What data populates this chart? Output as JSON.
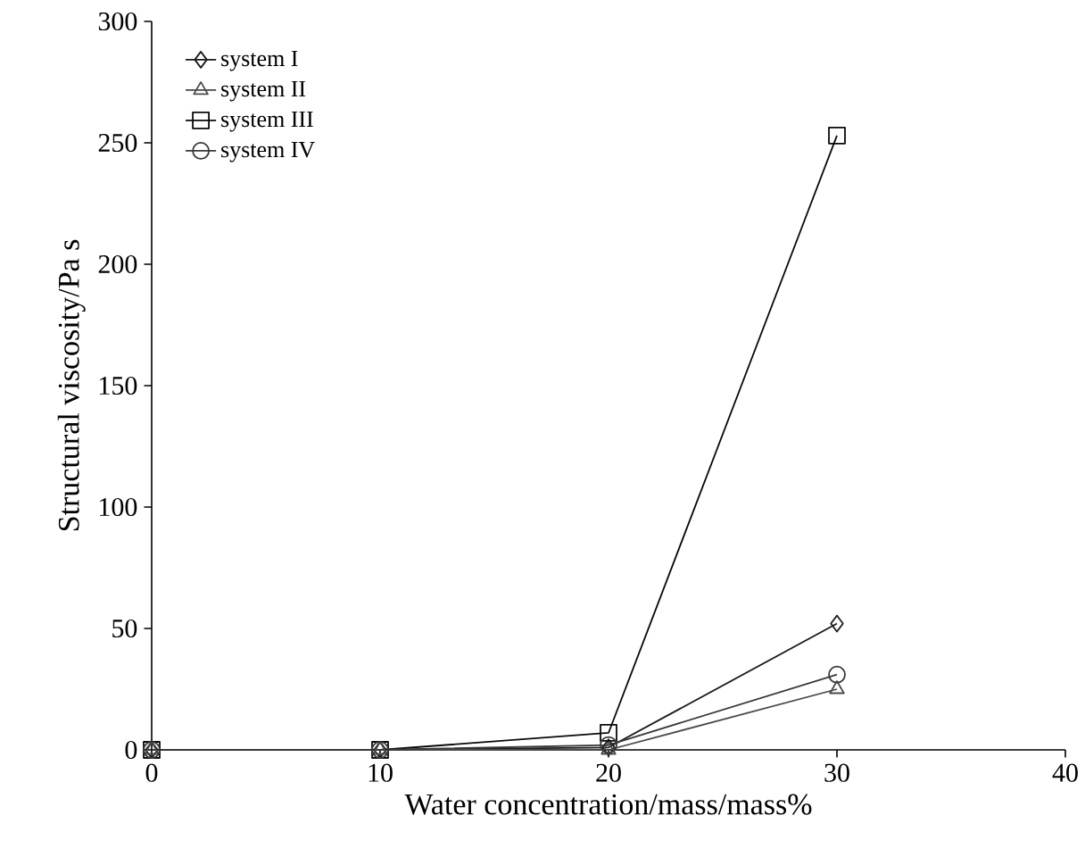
{
  "chart_data": {
    "type": "line",
    "xlabel": "Water concentration/mass/mass%",
    "ylabel": "Structural viscosity/Pa s",
    "x": [
      0,
      10,
      20,
      30
    ],
    "xlim": [
      0,
      40
    ],
    "xticks": [
      0,
      10,
      20,
      30,
      40
    ],
    "ylim": [
      0,
      300
    ],
    "yticks": [
      0,
      50,
      100,
      150,
      200,
      250,
      300
    ],
    "legend": "top left",
    "grid": false,
    "line_style": "solid",
    "series": [
      {
        "name": "system I",
        "color": "#1a1a1a",
        "marker": "diamond",
        "values": [
          0,
          0,
          1,
          52
        ]
      },
      {
        "name": "system II",
        "color": "#4a4a4a",
        "marker": "triangle",
        "values": [
          0,
          0,
          0,
          25
        ]
      },
      {
        "name": "system III",
        "color": "#0a0a0a",
        "marker": "square",
        "values": [
          0,
          0,
          7,
          253
        ]
      },
      {
        "name": "system IV",
        "color": "#383838",
        "marker": "circle",
        "values": [
          0,
          0,
          2,
          31
        ]
      }
    ]
  }
}
